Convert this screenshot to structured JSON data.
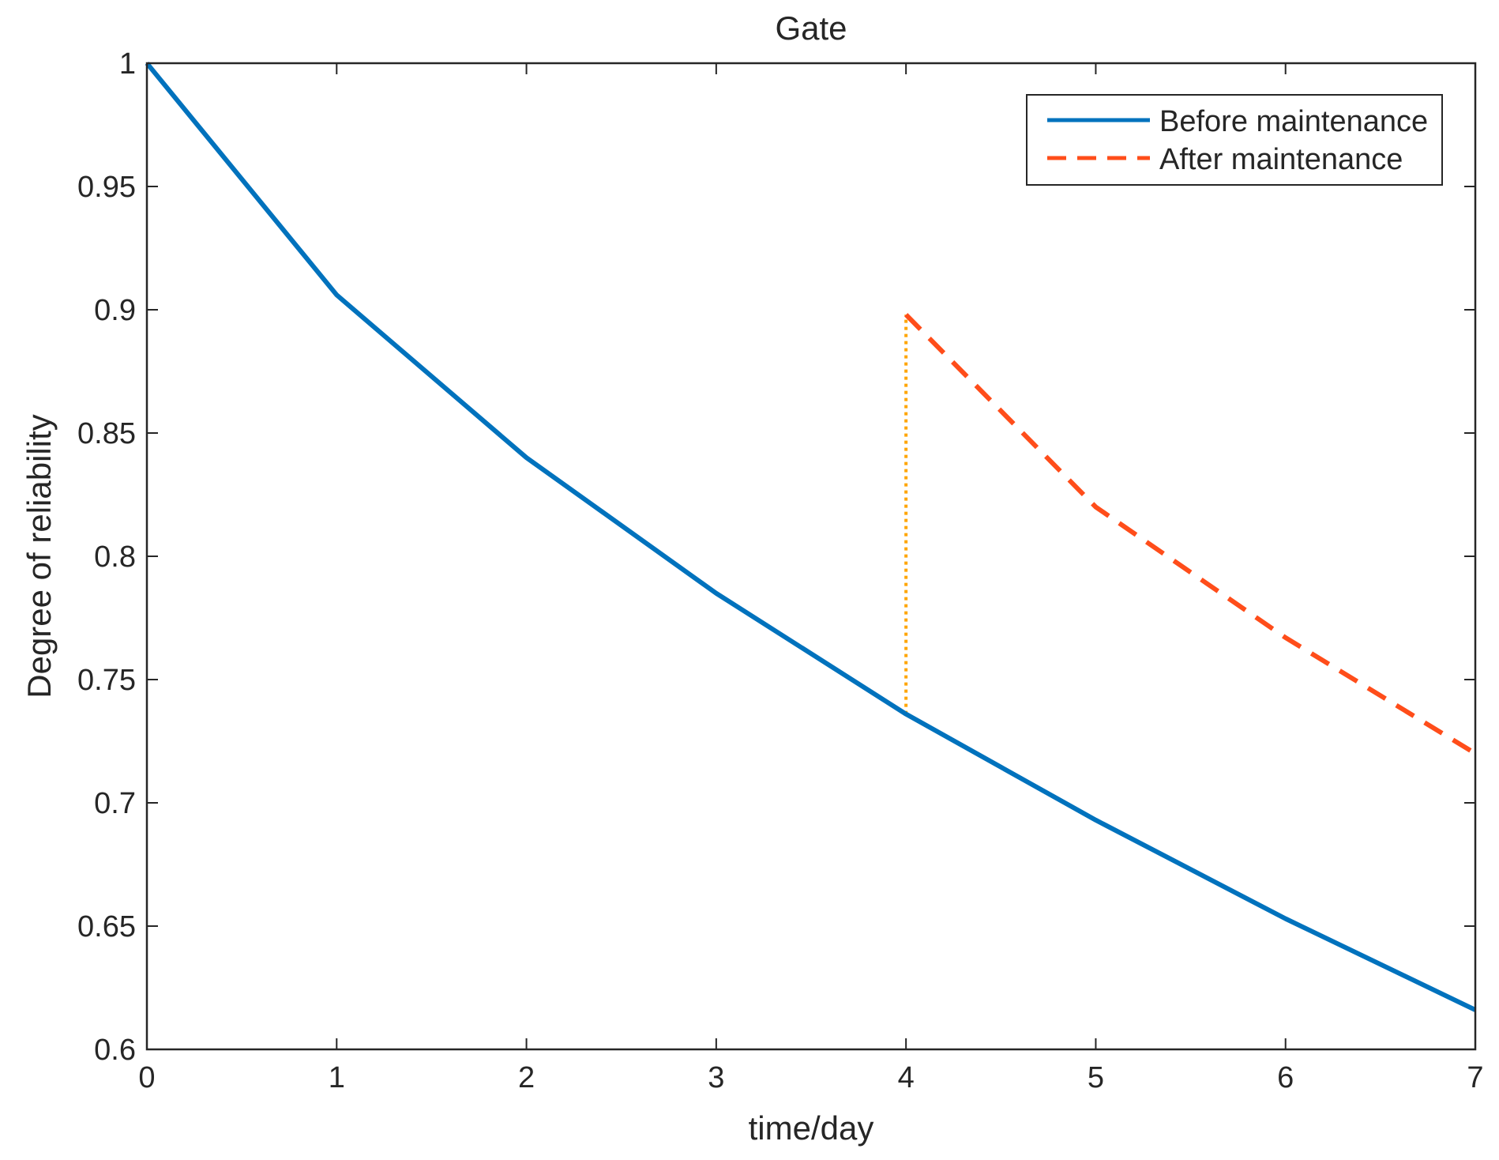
{
  "chart_data": {
    "type": "line",
    "title": "Gate",
    "xlabel": "time/day",
    "ylabel": "Degree of reliability",
    "xlim": [
      0,
      7
    ],
    "ylim": [
      0.6,
      1
    ],
    "xticks": [
      0,
      1,
      2,
      3,
      4,
      5,
      6,
      7
    ],
    "xtick_labels": [
      "0",
      "1",
      "2",
      "3",
      "4",
      "5",
      "6",
      "7"
    ],
    "yticks": [
      0.6,
      0.65,
      0.7,
      0.75,
      0.8,
      0.85,
      0.9,
      0.95,
      1
    ],
    "ytick_labels": [
      "0.6",
      "0.65",
      "0.7",
      "0.75",
      "0.8",
      "0.85",
      "0.9",
      "0.95",
      "1"
    ],
    "grid": false,
    "legend_position": "top-right",
    "series": [
      {
        "name": "Before maintenance",
        "style": "solid",
        "color": "#0072BD",
        "x": [
          0,
          1,
          2,
          3,
          4,
          5,
          6,
          7
        ],
        "y": [
          1.0,
          0.906,
          0.84,
          0.785,
          0.736,
          0.693,
          0.653,
          0.616
        ]
      },
      {
        "name": "After maintenance",
        "style": "dashed",
        "color": "#FF4D1A",
        "x": [
          4,
          5,
          6,
          7
        ],
        "y": [
          0.898,
          0.82,
          0.767,
          0.72
        ]
      }
    ],
    "annotations": [
      {
        "type": "vertical-dotted-line",
        "color": "#FFA500",
        "x": 4,
        "y_from": 0.736,
        "y_to": 0.898
      }
    ]
  }
}
